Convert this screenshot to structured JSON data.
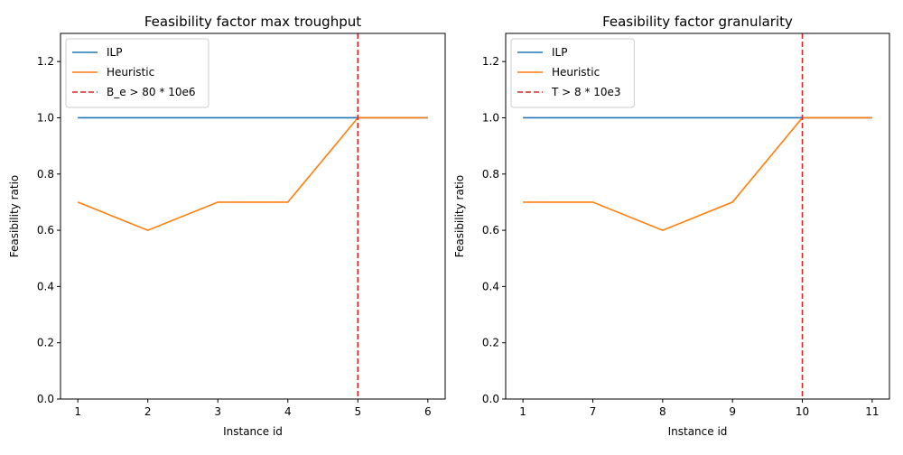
{
  "chart_data": [
    {
      "type": "line",
      "title": "Feasibility factor max troughput",
      "xlabel": "Instance id",
      "ylabel": "Feasibility ratio",
      "categories": [
        "1",
        "2",
        "3",
        "4",
        "5",
        "6"
      ],
      "ylim": [
        0,
        1.3
      ],
      "yticks": [
        0.0,
        0.2,
        0.4,
        0.6,
        0.8,
        1.0,
        1.2
      ],
      "series": [
        {
          "name": "ILP",
          "values": [
            1.0,
            1.0,
            1.0,
            1.0,
            1.0,
            1.0
          ],
          "color": "#1f77b4"
        },
        {
          "name": "Heuristic",
          "values": [
            0.7,
            0.6,
            0.7,
            0.7,
            1.0,
            1.0
          ],
          "color": "#ff7f0e"
        }
      ],
      "vline": {
        "label": "B_e > 80 * 10e6",
        "at_category_index": 4,
        "color": "#d62728"
      },
      "legend": "top-left",
      "grid": false
    },
    {
      "type": "line",
      "title": "Feasibility factor granularity",
      "xlabel": "Instance id",
      "ylabel": "Feasibility ratio",
      "categories": [
        "1",
        "7",
        "8",
        "9",
        "10",
        "11"
      ],
      "ylim": [
        0,
        1.3
      ],
      "yticks": [
        0.0,
        0.2,
        0.4,
        0.6,
        0.8,
        1.0,
        1.2
      ],
      "series": [
        {
          "name": "ILP",
          "values": [
            1.0,
            1.0,
            1.0,
            1.0,
            1.0,
            1.0
          ],
          "color": "#1f77b4"
        },
        {
          "name": "Heuristic",
          "values": [
            0.7,
            0.7,
            0.6,
            0.7,
            1.0,
            1.0
          ],
          "color": "#ff7f0e"
        }
      ],
      "vline": {
        "label": "T > 8 * 10e3",
        "at_category_index": 4,
        "color": "#d62728"
      },
      "legend": "top-left",
      "grid": false
    }
  ]
}
